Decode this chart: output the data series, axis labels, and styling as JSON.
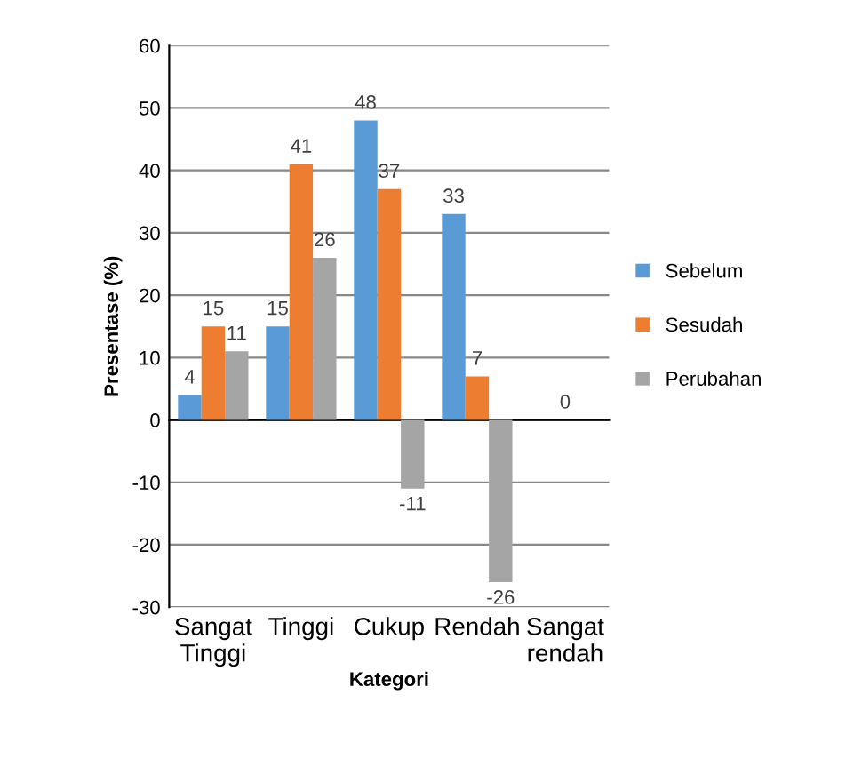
{
  "chart_data": {
    "type": "bar",
    "xlabel": "Kategori",
    "ylabel": "Presentase (%)",
    "categories": [
      "Sangat\nTinggi",
      "Tinggi",
      "Cukup",
      "Rendah",
      "Sangat\nrendah"
    ],
    "series": [
      {
        "name": "Sebelum",
        "color": "#5b9bd5",
        "values": [
          4,
          15,
          48,
          33,
          0
        ],
        "value_labels": [
          "4",
          "15",
          "48",
          "33",
          null
        ]
      },
      {
        "name": "Sesudah",
        "color": "#ed7d31",
        "values": [
          15,
          41,
          37,
          7,
          0
        ],
        "value_labels": [
          "15",
          "41",
          "37",
          "7",
          "0"
        ]
      },
      {
        "name": "Perubahan",
        "color": "#a5a5a5",
        "values": [
          11,
          26,
          -11,
          -26,
          0
        ],
        "value_labels": [
          "11",
          "26",
          "-11",
          "-26",
          null
        ]
      }
    ],
    "ylim": [
      -30,
      60
    ],
    "yticks": [
      -30,
      -20,
      -10,
      0,
      10,
      20,
      30,
      40,
      50,
      60
    ],
    "grid": "y",
    "legend": "right"
  }
}
